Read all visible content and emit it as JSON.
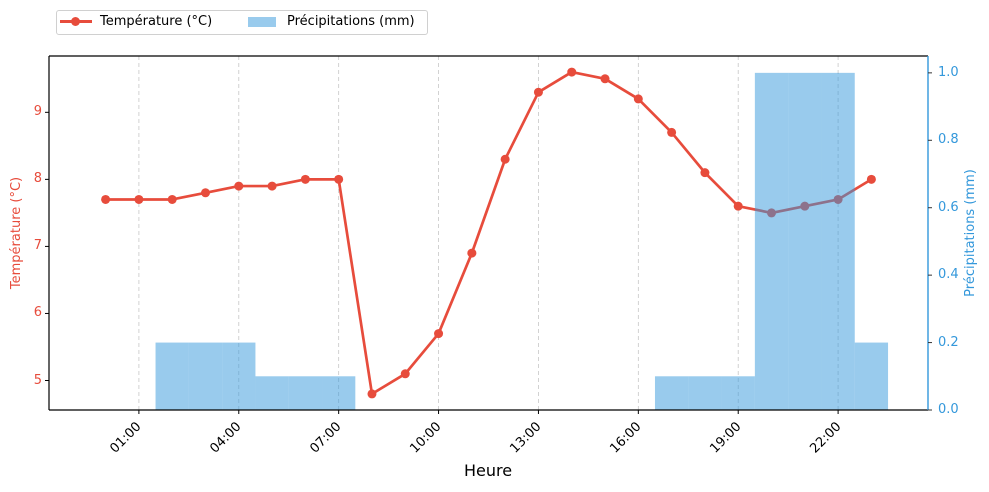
{
  "legend": {
    "items": [
      {
        "label": "Température (°C)",
        "kind": "line-marker",
        "color": "#e74c3c"
      },
      {
        "label": "Précipitations (mm)",
        "kind": "patch",
        "color": "#3498db",
        "alpha": 0.5
      }
    ]
  },
  "axes": {
    "xlabel": "Heure",
    "ylabel_left": "Température (°C)",
    "ylabel_right": "Précipitations (mm)"
  },
  "colors": {
    "temperature": "#e74c3c",
    "precipitation": "#3498db",
    "grid": "#b0b0b0",
    "spine": "#000000"
  },
  "chart_data": {
    "type": "line",
    "secondary_type": "bar",
    "title": "",
    "xlabel": "Heure",
    "ylabel": "Température (°C)",
    "ylabel_right": "Précipitations (mm)",
    "x": [
      "00:00",
      "01:00",
      "02:00",
      "03:00",
      "04:00",
      "05:00",
      "06:00",
      "07:00",
      "08:00",
      "09:00",
      "10:00",
      "11:00",
      "12:00",
      "13:00",
      "14:00",
      "15:00",
      "16:00",
      "17:00",
      "18:00",
      "19:00",
      "20:00",
      "21:00",
      "22:00",
      "23:00"
    ],
    "xticks": [
      {
        "index": 1,
        "label": "01:00"
      },
      {
        "index": 4,
        "label": "04:00"
      },
      {
        "index": 7,
        "label": "07:00"
      },
      {
        "index": 10,
        "label": "10:00"
      },
      {
        "index": 13,
        "label": "13:00"
      },
      {
        "index": 16,
        "label": "16:00"
      },
      {
        "index": 19,
        "label": "19:00"
      },
      {
        "index": 22,
        "label": "22:00"
      }
    ],
    "xlim": [
      -1.7,
      24.7
    ],
    "series": [
      {
        "name": "Température (°C)",
        "type": "line",
        "axis": "left",
        "color": "#e74c3c",
        "marker": "circle",
        "values": [
          7.7,
          7.7,
          7.7,
          7.8,
          7.9,
          7.9,
          8.0,
          8.0,
          4.8,
          5.1,
          5.7,
          6.9,
          8.3,
          9.3,
          9.6,
          9.5,
          9.2,
          8.7,
          8.1,
          7.6,
          7.5,
          7.6,
          7.7,
          8.0
        ]
      },
      {
        "name": "Précipitations (mm)",
        "type": "bar",
        "axis": "right",
        "color": "#3498db",
        "alpha": 0.5,
        "bar_width": 1.0,
        "values": [
          0,
          0,
          0.2,
          0.2,
          0.2,
          0.1,
          0.1,
          0.1,
          0,
          0,
          0,
          0,
          0,
          0,
          0,
          0,
          0,
          0.1,
          0.1,
          0.1,
          1.0,
          1.0,
          1.0,
          0.2
        ]
      }
    ],
    "ylim_left": [
      4.56,
      9.84
    ],
    "yticks_left": [
      "5",
      "6",
      "7",
      "8",
      "9"
    ],
    "ylim_right": [
      0,
      1.05
    ],
    "yticks_right": [
      "0.0",
      "0.2",
      "0.4",
      "0.6",
      "0.8",
      "1.0"
    ],
    "grid": {
      "axis": "x",
      "style": "dashed",
      "on": true
    },
    "legend_position": "upper left, above axes"
  }
}
